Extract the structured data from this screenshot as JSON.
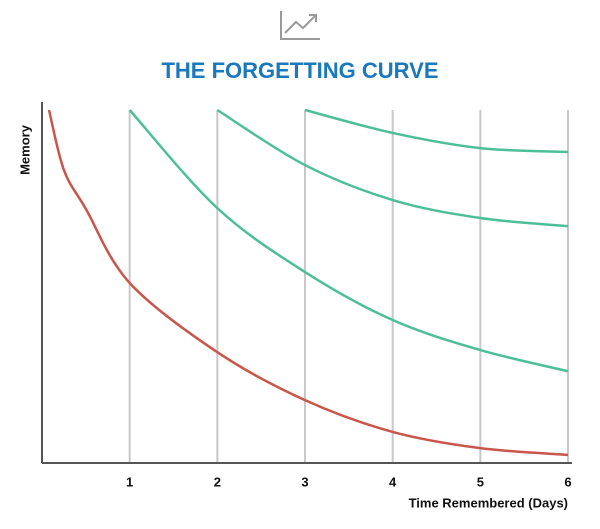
{
  "chart_data": {
    "type": "line",
    "title": "THE FORGETTING CURVE",
    "x_label": "Time Remembered (Days)",
    "y_label": "Memory",
    "x": [
      0.08,
      0.25,
      0.5,
      1,
      2,
      3,
      4,
      5,
      6
    ],
    "series": [
      {
        "color": "#c9554b",
        "values": [
          100,
          83,
          72,
          51,
          31.4,
          17.8,
          8.8,
          4.2,
          2.3
        ]
      },
      {
        "color": "#4dbf98",
        "values": [
          null,
          null,
          null,
          100,
          72.2,
          54.1,
          40.5,
          32,
          26
        ]
      },
      {
        "color": "#4dbf98",
        "values": [
          null,
          null,
          null,
          null,
          100,
          84.4,
          74.5,
          69.4,
          67.1
        ]
      },
      {
        "color": "#4dbf98",
        "values": [
          null,
          null,
          null,
          null,
          null,
          100,
          93.5,
          89.2,
          88.1
        ]
      }
    ],
    "xlim": [
      0,
      6
    ],
    "ylim": [
      0,
      100
    ],
    "xticks": [
      1,
      2,
      3,
      4,
      5,
      6
    ],
    "grid": true
  }
}
